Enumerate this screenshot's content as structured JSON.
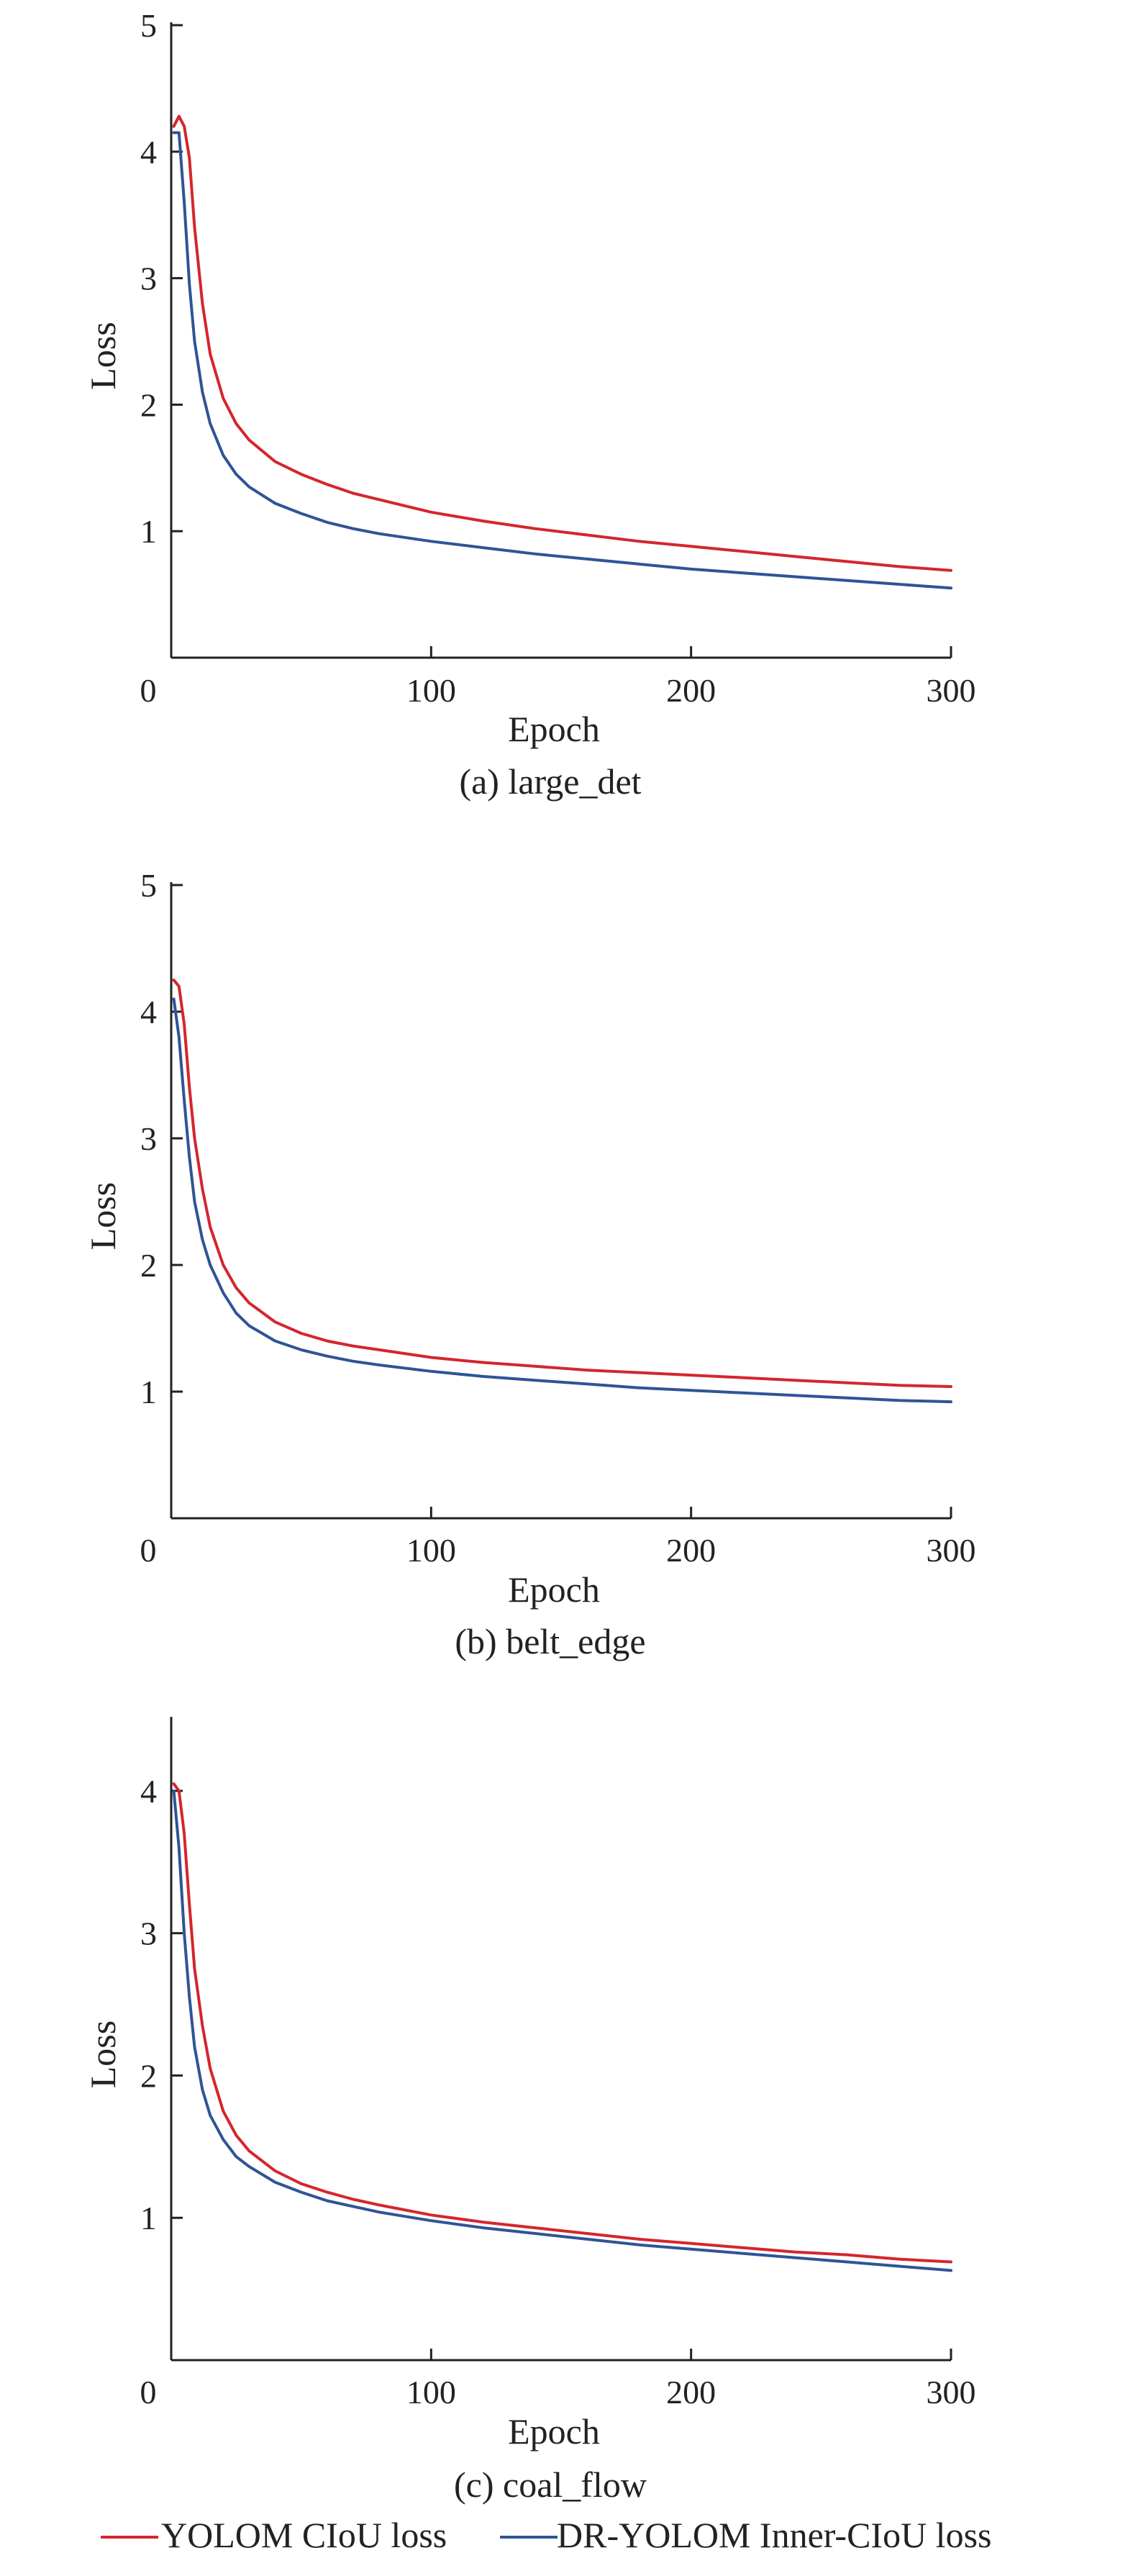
{
  "colors": {
    "ciou": "#d4262e",
    "inner_ciou": "#2f5496",
    "axis": "#222222"
  },
  "legend": [
    {
      "name": "YOLOM CIoU loss",
      "color": "#d4262e"
    },
    {
      "name": "DR-YOLOM Inner-CIoU loss",
      "color": "#2f5496"
    }
  ],
  "chart_data": [
    {
      "type": "line",
      "caption": "(a) large_det",
      "xlabel": "Epoch",
      "ylabel": "Loss",
      "xlim": [
        0,
        300
      ],
      "ylim": [
        0,
        5
      ],
      "xticks": [
        0,
        100,
        200,
        300
      ],
      "yticks": [
        1,
        2,
        3,
        4,
        5
      ],
      "grid": false,
      "x": [
        1,
        3,
        5,
        7,
        9,
        12,
        15,
        20,
        25,
        30,
        40,
        50,
        60,
        70,
        80,
        100,
        120,
        140,
        160,
        180,
        200,
        220,
        240,
        260,
        280,
        300
      ],
      "series": [
        {
          "name": "YOLOM CIoU loss",
          "color": "#d4262e",
          "values": [
            4.2,
            4.28,
            4.2,
            3.95,
            3.4,
            2.8,
            2.4,
            2.05,
            1.85,
            1.72,
            1.55,
            1.45,
            1.37,
            1.3,
            1.25,
            1.15,
            1.08,
            1.02,
            0.97,
            0.92,
            0.88,
            0.84,
            0.8,
            0.76,
            0.72,
            0.69
          ]
        },
        {
          "name": "DR-YOLOM Inner-CIoU loss",
          "color": "#2f5496",
          "values": [
            4.15,
            4.15,
            3.6,
            2.95,
            2.5,
            2.1,
            1.85,
            1.6,
            1.45,
            1.35,
            1.22,
            1.14,
            1.07,
            1.02,
            0.98,
            0.92,
            0.87,
            0.82,
            0.78,
            0.74,
            0.7,
            0.67,
            0.64,
            0.61,
            0.58,
            0.55
          ]
        }
      ]
    },
    {
      "type": "line",
      "caption": "(b) belt_edge",
      "xlabel": "Epoch",
      "ylabel": "Loss",
      "xlim": [
        0,
        300
      ],
      "ylim": [
        0,
        5
      ],
      "xticks": [
        0,
        100,
        200,
        300
      ],
      "yticks": [
        1,
        2,
        3,
        4,
        5
      ],
      "grid": false,
      "x": [
        1,
        3,
        5,
        7,
        9,
        12,
        15,
        20,
        25,
        30,
        40,
        50,
        60,
        70,
        80,
        100,
        120,
        140,
        160,
        180,
        200,
        220,
        240,
        260,
        280,
        300
      ],
      "series": [
        {
          "name": "YOLOM CIoU loss",
          "color": "#d4262e",
          "values": [
            4.25,
            4.2,
            3.9,
            3.4,
            3.0,
            2.6,
            2.3,
            2.0,
            1.82,
            1.7,
            1.55,
            1.46,
            1.4,
            1.36,
            1.33,
            1.27,
            1.23,
            1.2,
            1.17,
            1.15,
            1.13,
            1.11,
            1.09,
            1.07,
            1.05,
            1.04
          ]
        },
        {
          "name": "DR-YOLOM Inner-CIoU loss",
          "color": "#2f5496",
          "values": [
            4.1,
            3.8,
            3.3,
            2.85,
            2.5,
            2.2,
            2.0,
            1.78,
            1.62,
            1.52,
            1.4,
            1.33,
            1.28,
            1.24,
            1.21,
            1.16,
            1.12,
            1.09,
            1.06,
            1.03,
            1.01,
            0.99,
            0.97,
            0.95,
            0.93,
            0.92
          ]
        }
      ]
    },
    {
      "type": "line",
      "caption": "(c) coal_flow",
      "xlabel": "Epoch",
      "ylabel": "Loss",
      "xlim": [
        0,
        300
      ],
      "ylim": [
        0,
        4.5
      ],
      "xticks": [
        0,
        100,
        200,
        300
      ],
      "yticks": [
        1,
        2,
        3,
        4
      ],
      "grid": false,
      "x": [
        1,
        3,
        5,
        7,
        9,
        12,
        15,
        20,
        25,
        30,
        40,
        50,
        60,
        70,
        80,
        100,
        120,
        140,
        160,
        180,
        200,
        220,
        240,
        260,
        280,
        300
      ],
      "series": [
        {
          "name": "YOLOM CIoU loss",
          "color": "#d4262e",
          "values": [
            4.05,
            4.0,
            3.7,
            3.2,
            2.75,
            2.35,
            2.05,
            1.75,
            1.58,
            1.47,
            1.33,
            1.24,
            1.18,
            1.13,
            1.09,
            1.02,
            0.97,
            0.93,
            0.89,
            0.85,
            0.82,
            0.79,
            0.76,
            0.74,
            0.71,
            0.69
          ]
        },
        {
          "name": "DR-YOLOM Inner-CIoU loss",
          "color": "#2f5496",
          "values": [
            4.0,
            3.6,
            3.0,
            2.55,
            2.2,
            1.9,
            1.72,
            1.55,
            1.43,
            1.36,
            1.25,
            1.18,
            1.12,
            1.08,
            1.04,
            0.98,
            0.93,
            0.89,
            0.85,
            0.81,
            0.78,
            0.75,
            0.72,
            0.69,
            0.66,
            0.63
          ]
        }
      ]
    }
  ]
}
